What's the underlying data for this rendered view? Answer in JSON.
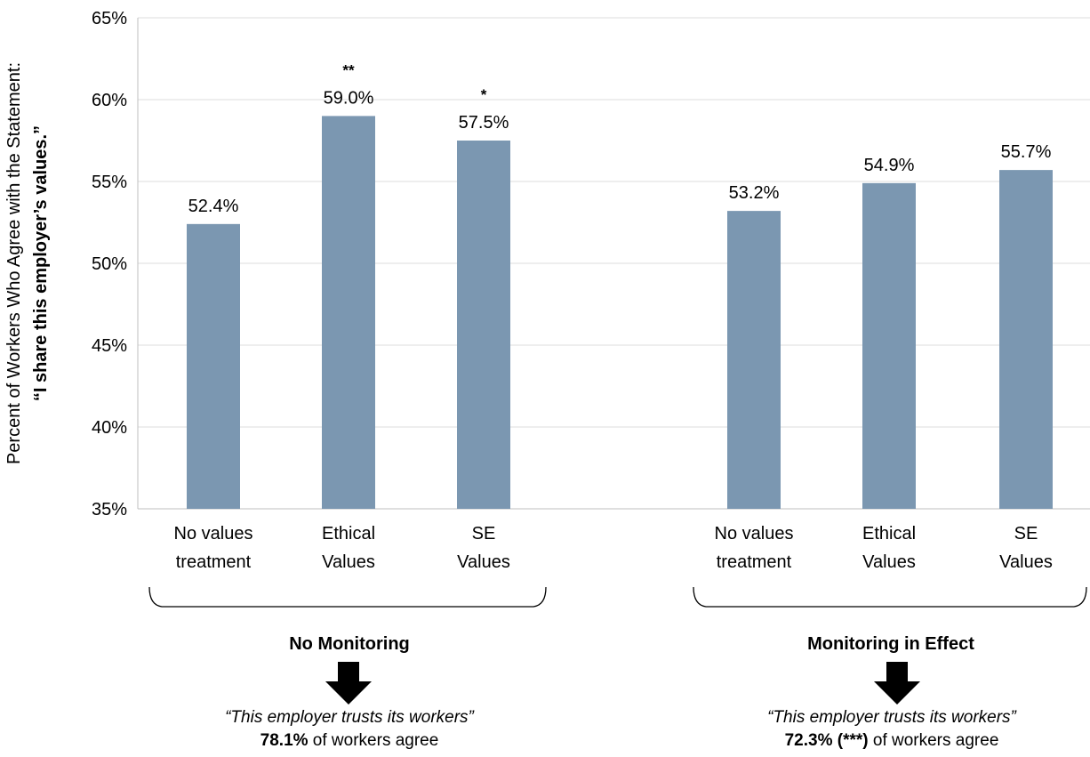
{
  "chart_data": {
    "type": "bar",
    "ylabel_line1": "Percent of Workers Who Agree with the Statement:",
    "ylabel_line2": "“I share this employer’s values.”",
    "ylim": [
      35,
      65
    ],
    "yticks": [
      "35%",
      "40%",
      "45%",
      "50%",
      "55%",
      "60%",
      "65%"
    ],
    "grid": true,
    "color": "#7b97b1",
    "groups": [
      {
        "name": "No Monitoring",
        "bars": [
          {
            "category": [
              "No values",
              "treatment"
            ],
            "value": 52.4,
            "label": "52.4%",
            "stars": ""
          },
          {
            "category": [
              "Ethical",
              "Values"
            ],
            "value": 59.0,
            "label": "59.0%",
            "stars": "**"
          },
          {
            "category": [
              "SE",
              "Values"
            ],
            "value": 57.5,
            "label": "57.5%",
            "stars": "*"
          }
        ],
        "quote": "“This employer trusts its workers”",
        "stat_bold": "78.1%",
        "stat_rest": " of workers agree"
      },
      {
        "name": "Monitoring in Effect",
        "bars": [
          {
            "category": [
              "No values",
              "treatment"
            ],
            "value": 53.2,
            "label": "53.2%",
            "stars": ""
          },
          {
            "category": [
              "Ethical",
              "Values"
            ],
            "value": 54.9,
            "label": "54.9%",
            "stars": ""
          },
          {
            "category": [
              "SE",
              "Values"
            ],
            "value": 55.7,
            "label": "55.7%",
            "stars": ""
          }
        ],
        "quote": "“This employer trusts its workers”",
        "stat_bold": "72.3% (***)",
        "stat_rest": " of workers agree"
      }
    ]
  }
}
